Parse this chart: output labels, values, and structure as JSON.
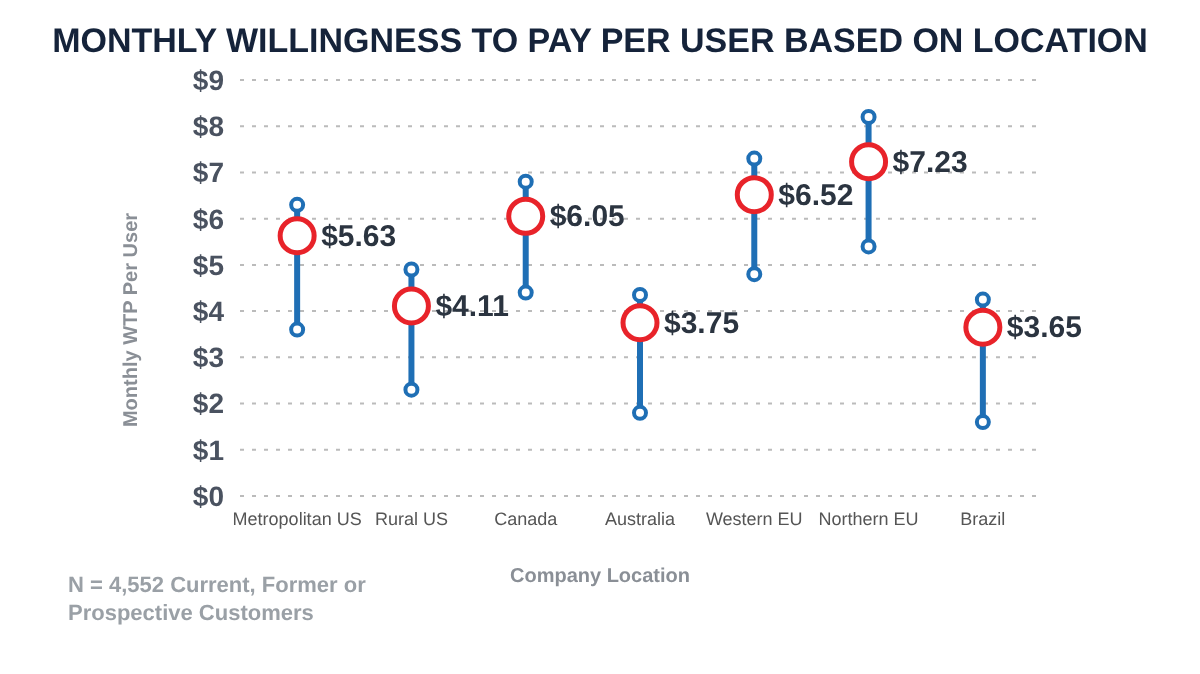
{
  "chart_data": {
    "type": "scatter",
    "title": "MONTHLY WILLINGNESS TO PAY PER USER BASED ON LOCATION",
    "xlabel": "Company Location",
    "ylabel": "Monthly WTP Per User",
    "categories": [
      "Metropolitan US",
      "Rural US",
      "Canada",
      "Australia",
      "Western EU",
      "Northern EU",
      "Brazil"
    ],
    "series": [
      {
        "color": "#e8232a",
        "values": [
          5.63,
          4.11,
          6.05,
          3.75,
          6.52,
          7.23,
          3.65
        ],
        "errors": [
          [
            3.6,
            6.3
          ],
          [
            2.3,
            4.9
          ],
          [
            4.4,
            6.8
          ],
          [
            1.8,
            4.35
          ],
          [
            4.8,
            7.3
          ],
          [
            5.4,
            8.2
          ],
          [
            1.6,
            4.25
          ]
        ],
        "value_labels": [
          "$5.63",
          "$4.11",
          "$6.05",
          "$3.75",
          "$6.52",
          "$7.23",
          "$3.65"
        ]
      }
    ],
    "ylim": [
      0,
      9
    ],
    "yticks": [
      {
        "value": 0,
        "label": "$0"
      },
      {
        "value": 1,
        "label": "$1"
      },
      {
        "value": 2,
        "label": "$2"
      },
      {
        "value": 3,
        "label": "$3"
      },
      {
        "value": 4,
        "label": "$4"
      },
      {
        "value": 5,
        "label": "$5"
      },
      {
        "value": 6,
        "label": "$6"
      },
      {
        "value": 7,
        "label": "$7"
      },
      {
        "value": 8,
        "label": "$8"
      },
      {
        "value": 9,
        "label": "$9"
      }
    ],
    "grid": "y",
    "marker": "circle",
    "annotations": [
      "N = 4,552 Current, Former or Prospective Customers"
    ]
  }
}
